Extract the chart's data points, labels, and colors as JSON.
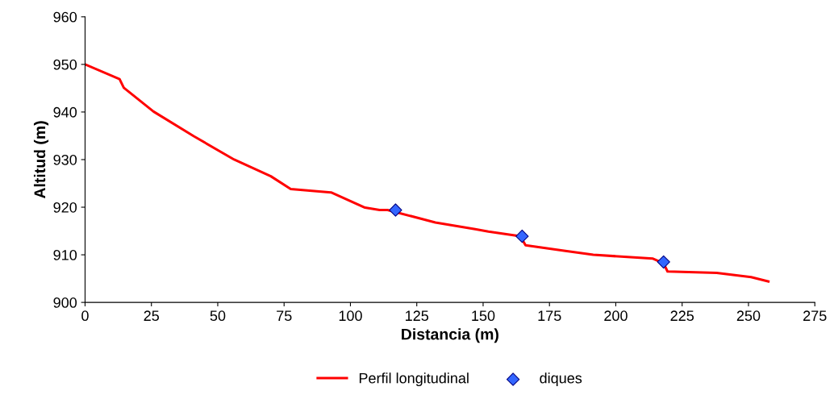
{
  "chart_data": {
    "type": "line",
    "xlabel": "Distancia (m)",
    "ylabel": "Altitud (m)",
    "xlim": [
      0,
      275
    ],
    "xticks": [
      0,
      25,
      50,
      75,
      100,
      125,
      150,
      175,
      200,
      225,
      250,
      275
    ],
    "ylim": [
      900,
      960
    ],
    "yticks": [
      900,
      910,
      920,
      930,
      940,
      950,
      960
    ],
    "grid": false,
    "legend": "bottom",
    "series": [
      {
        "name": "Perfil longitudinal",
        "color": "#ff0000",
        "marker": "none",
        "line_style": "solid",
        "x": [
          0,
          13,
          14.6,
          25.8,
          41,
          56.2,
          70,
          77.5,
          92.7,
          105.5,
          111,
          114,
          132,
          147,
          152,
          164,
          166,
          181,
          191.5,
          214,
          218,
          219.5,
          238,
          251,
          257.5
        ],
        "values": [
          950,
          946.9,
          945.1,
          940.1,
          934.9,
          930,
          926.5,
          923.8,
          923.1,
          919.9,
          919.4,
          919.4,
          916.8,
          915.4,
          914.9,
          913.9,
          912,
          910.8,
          910,
          909.2,
          908.2,
          906.5,
          906.2,
          905.3,
          904.4
        ]
      },
      {
        "name": "diques",
        "type": "scatter",
        "color": "#3366ff",
        "marker": "diamond",
        "x": [
          117,
          164.7,
          218
        ],
        "values": [
          919.4,
          913.9,
          908.5
        ]
      }
    ]
  }
}
